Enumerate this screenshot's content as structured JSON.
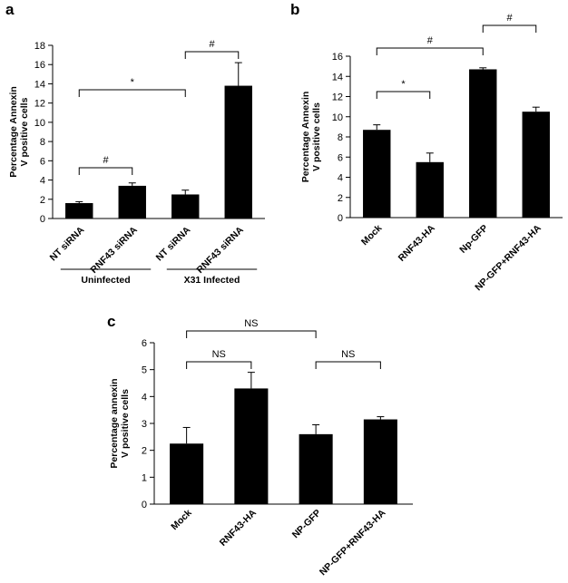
{
  "chart_data": [
    {
      "panel": "a",
      "type": "bar",
      "categories": [
        "NT siRNA",
        "RNF43 siRNA",
        "NT siRNA",
        "RNF43 siRNA"
      ],
      "values": [
        1.6,
        3.4,
        2.5,
        13.8
      ],
      "errors": [
        0.15,
        0.3,
        0.45,
        2.4
      ],
      "ylabel": "Percentage Annexin V positive cells",
      "ylim": [
        0,
        18
      ],
      "yticks": [
        0,
        2,
        4,
        6,
        8,
        10,
        12,
        14,
        16,
        18
      ],
      "groups": [
        {
          "label": "Uninfected",
          "from": 0,
          "to": 1
        },
        {
          "label": "X31 Infected",
          "from": 2,
          "to": 3
        }
      ],
      "annotations": [
        {
          "text": "#",
          "from": 0,
          "to": 1
        },
        {
          "text": "*",
          "from": 0,
          "to": 2
        },
        {
          "text": "#",
          "from": 2,
          "to": 3
        }
      ],
      "grid": false
    },
    {
      "panel": "b",
      "type": "bar",
      "categories": [
        "Mock",
        "RNF43-HA",
        "Np-GFP",
        "NP-GFP+RNF43-HA"
      ],
      "values": [
        8.7,
        5.5,
        14.7,
        10.5
      ],
      "errors": [
        0.5,
        0.9,
        0.15,
        0.45
      ],
      "ylabel": "Percentage Annexin V positive cells",
      "ylim": [
        0,
        16
      ],
      "yticks": [
        0,
        2,
        4,
        6,
        8,
        10,
        12,
        14,
        16
      ],
      "annotations": [
        {
          "text": "*",
          "from": 0,
          "to": 1
        },
        {
          "text": "#",
          "from": 0,
          "to": 2
        },
        {
          "text": "#",
          "from": 2,
          "to": 3
        }
      ],
      "grid": false
    },
    {
      "panel": "c",
      "type": "bar",
      "categories": [
        "Mock",
        "RNF43-HA",
        "NP-GFP",
        "NP-GFP+RNF43-HA"
      ],
      "values": [
        2.25,
        4.3,
        2.6,
        3.15
      ],
      "errors": [
        0.6,
        0.6,
        0.35,
        0.1
      ],
      "ylabel": "Percentage annexin V positive cells",
      "ylim": [
        0,
        6
      ],
      "yticks": [
        0,
        1,
        2,
        3,
        4,
        5,
        6
      ],
      "annotations": [
        {
          "text": "NS",
          "from": 0,
          "to": 1
        },
        {
          "text": "NS",
          "from": 0,
          "to": 2
        },
        {
          "text": "NS",
          "from": 2,
          "to": 3
        }
      ],
      "grid": false
    }
  ],
  "panel_labels": [
    "a",
    "b",
    "c"
  ],
  "colors": {
    "bar": "#000000",
    "axis": "#000000"
  }
}
